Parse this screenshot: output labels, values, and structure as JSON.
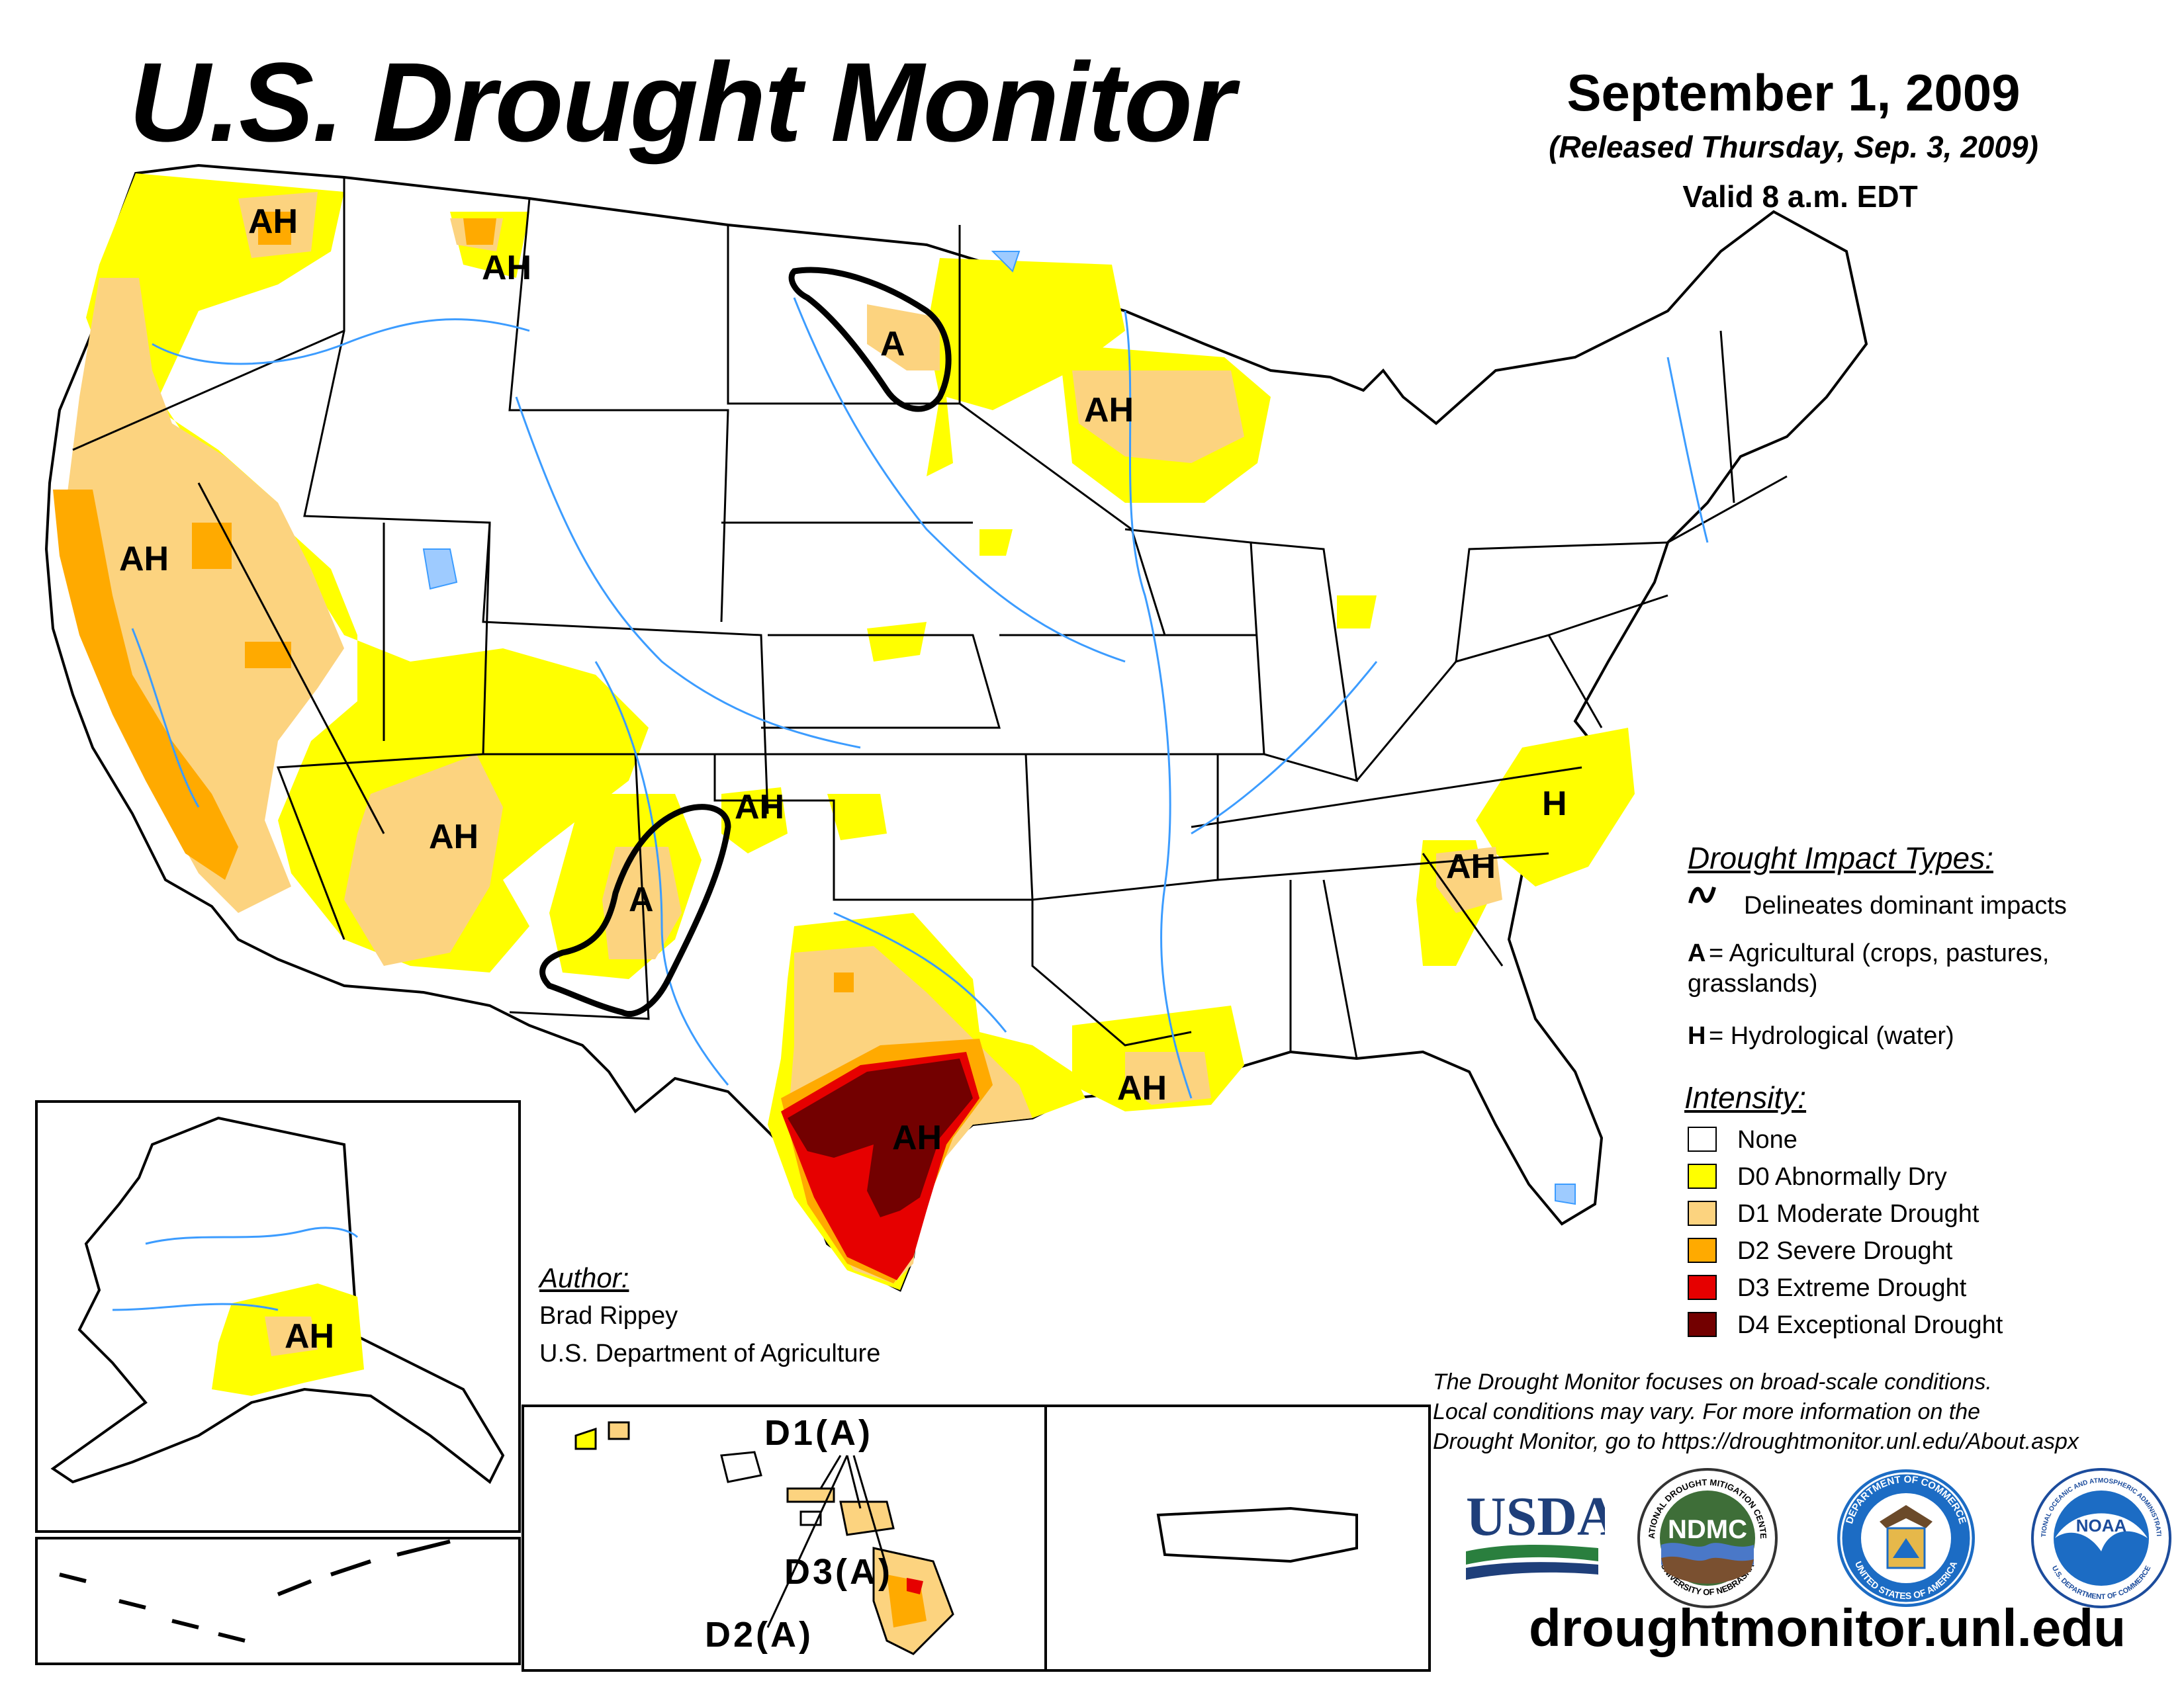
{
  "header": {
    "title": "U.S. Drought Monitor",
    "date": "September 1, 2009",
    "released": "(Released Thursday, Sep. 3, 2009)",
    "valid": "Valid 8 a.m. EDT"
  },
  "map_labels": {
    "wa": "AH",
    "mt": "AH",
    "nd": "A",
    "wi": "AH",
    "ca": "AH",
    "az": "AH",
    "nm": "A",
    "ok_panhandle": "AH",
    "nc": "H",
    "sc": "AH",
    "tx": "AH",
    "la": "AH",
    "ak": "AH"
  },
  "hawaii_labels": {
    "d1": "D1(A)",
    "d3": "D3(A)",
    "d2": "D2(A)"
  },
  "legend": {
    "impact_heading": "Drought Impact Types:",
    "delineates": "Delineates dominant impacts",
    "a_code": "A",
    "a_text": "= Agricultural (crops, pastures,",
    "a_text2": "grasslands)",
    "h_code": "H",
    "h_text": "= Hydrological (water)",
    "intensity_heading": "Intensity:",
    "levels": [
      {
        "label": "None",
        "color": "#ffffff"
      },
      {
        "label": "D0 Abnormally Dry",
        "color": "#ffff00"
      },
      {
        "label": "D1 Moderate Drought",
        "color": "#fcd37f"
      },
      {
        "label": "D2 Severe Drought",
        "color": "#ffaa00"
      },
      {
        "label": "D3 Extreme Drought",
        "color": "#e60000"
      },
      {
        "label": "D4 Exceptional Drought",
        "color": "#730000"
      }
    ]
  },
  "author": {
    "heading": "Author:",
    "name": "Brad Rippey",
    "org": "U.S. Department of Agriculture"
  },
  "notes": [
    "The Drought Monitor focuses on broad-scale conditions.",
    "Local conditions may vary. For more information on the",
    "Drought Monitor, go to https://droughtmonitor.unl.edu/About.aspx"
  ],
  "logos": {
    "usda": "USDA",
    "ndmc": "NDMC",
    "ndmc_ring_top": "NATIONAL DROUGHT MITIGATION CENTER",
    "ndmc_ring_bottom": "UNIVERSITY OF NEBRASKA",
    "doc_ring_top": "DEPARTMENT OF COMMERCE",
    "doc_ring_bottom": "UNITED STATES OF AMERICA",
    "noaa": "NOAA",
    "noaa_ring_top": "NATIONAL OCEANIC AND ATMOSPHERIC ADMINISTRATION",
    "noaa_ring_bottom": "U.S. DEPARTMENT OF COMMERCE"
  },
  "website": "droughtmonitor.unl.edu",
  "colors": {
    "water": "#3c9cff",
    "lake": "#9ecbff",
    "outline": "#000000"
  }
}
